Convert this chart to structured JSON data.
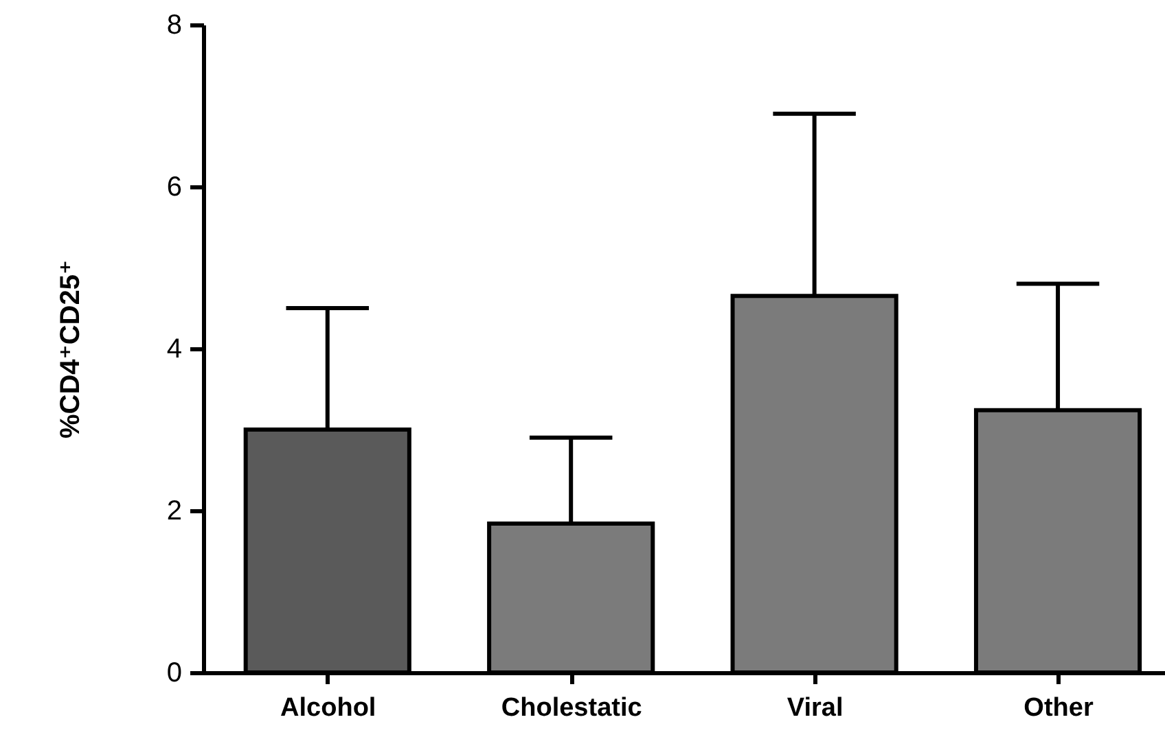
{
  "chart_data": {
    "type": "bar",
    "ylabel": "%CD4⁺CD25⁺",
    "categories": [
      "Alcohol",
      "Cholestatic",
      "Viral",
      "Other"
    ],
    "values": [
      3.0,
      1.84,
      4.65,
      3.24
    ],
    "colors": [
      "#5a5a5a",
      "#7b7b7b",
      "#7b7b7b",
      "#7b7b7b"
    ],
    "errors": [
      [
        3.0,
        4.5
      ],
      [
        1.84,
        2.9
      ],
      [
        4.65,
        6.9
      ],
      [
        3.24,
        4.8
      ]
    ],
    "ylim": [
      0,
      8
    ],
    "yticks": [
      0,
      2,
      4,
      6,
      8
    ]
  }
}
